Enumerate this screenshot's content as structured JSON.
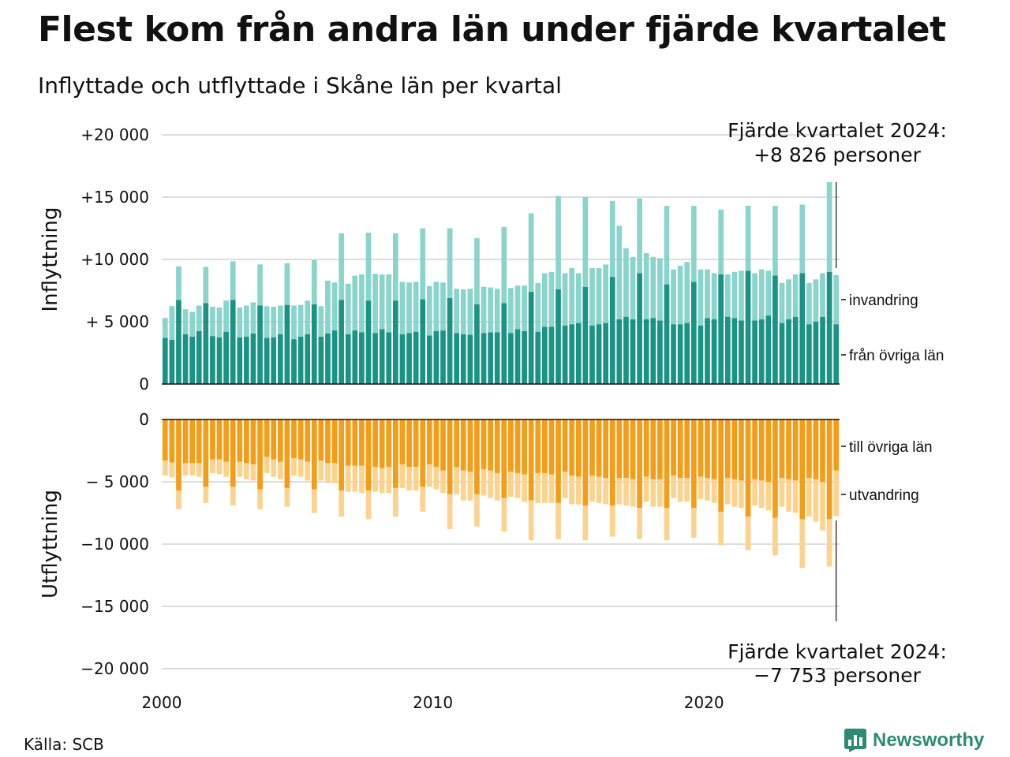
{
  "title": "Flest kom från andra län under fjärde kvartalet",
  "subtitle": "Inflyttade och utflyttade i Skåne län per kvartal",
  "source": "Källa: SCB",
  "brand": "Newsworthy",
  "colors": {
    "in_domestic": "#1a9384",
    "in_immigration": "#8ad4cc",
    "out_domestic": "#f59d17",
    "out_emigration": "#fbd38f",
    "grid": "#dddddd"
  },
  "chart_data": [
    {
      "type": "bar",
      "stacked": true,
      "ylabel": "Inflyttning",
      "ylim": [
        0,
        20000
      ],
      "ytick_values": [
        0,
        5000,
        10000,
        15000,
        20000
      ],
      "ytick_labels": [
        "0",
        "+ 5 000",
        "+10 000",
        "+15 000",
        "+20 000"
      ],
      "xlim": [
        2000,
        2025
      ],
      "xtick_values": [
        2000,
        2010,
        2020
      ],
      "xtick_labels": [
        "2000",
        "2010",
        "2020"
      ],
      "grid": true,
      "legend": "right",
      "series": [
        {
          "name": "från övriga län",
          "values": [
            3700,
            3550,
            6750,
            4000,
            3800,
            4250,
            6500,
            3850,
            3750,
            4200,
            6750,
            3750,
            3800,
            4050,
            6300,
            3700,
            3750,
            4000,
            6350,
            3600,
            3800,
            4000,
            6400,
            3800,
            4050,
            4300,
            6750,
            4000,
            4300,
            4150,
            6700,
            4100,
            4400,
            4150,
            6700,
            4000,
            4100,
            4200,
            6800,
            3900,
            4250,
            4300,
            6900,
            4100,
            4000,
            3950,
            6400,
            4100,
            4150,
            4150,
            6500,
            4100,
            4400,
            4250,
            7400,
            4200,
            4600,
            4600,
            7600,
            4700,
            4800,
            4900,
            7800,
            4700,
            4800,
            4900,
            8600,
            5200,
            5400,
            5200,
            8900,
            5200,
            5300,
            5100,
            8000,
            4800,
            4800,
            4900,
            8200,
            4700,
            5300,
            5200,
            8800,
            5400,
            5300,
            5100,
            9100,
            5100,
            5200,
            5500,
            8700,
            4900,
            5200,
            5400,
            8900,
            4800,
            5000,
            5400,
            9000,
            4800
          ]
        },
        {
          "name": "invandring",
          "values": [
            1600,
            2700,
            2700,
            2000,
            2000,
            2050,
            2900,
            2350,
            2400,
            2500,
            3100,
            2400,
            2500,
            2500,
            3300,
            2550,
            2450,
            2300,
            3350,
            2700,
            2550,
            2700,
            3550,
            2450,
            4250,
            3850,
            5350,
            4050,
            4400,
            4650,
            5450,
            4750,
            4400,
            4650,
            5400,
            4200,
            4050,
            4000,
            5700,
            3950,
            3950,
            3850,
            5600,
            3550,
            3600,
            3700,
            5300,
            3700,
            3600,
            3500,
            6100,
            3600,
            3500,
            3650,
            6300,
            3900,
            4300,
            4400,
            7500,
            4200,
            4500,
            4000,
            7200,
            4600,
            4500,
            4700,
            6100,
            7500,
            5500,
            5000,
            6000,
            5300,
            4900,
            5000,
            6300,
            4400,
            4700,
            4900,
            6100,
            4500,
            3900,
            3700,
            5200,
            3400,
            3700,
            4000,
            5200,
            3800,
            4000,
            3600,
            5600,
            3200,
            3200,
            3400,
            5500,
            3300,
            3400,
            3500,
            7200,
            3950
          ]
        }
      ]
    },
    {
      "type": "bar",
      "stacked": true,
      "ylabel": "Utflyttning",
      "ylim": [
        -20000,
        0
      ],
      "ytick_values": [
        0,
        -5000,
        -10000,
        -15000,
        -20000
      ],
      "ytick_labels": [
        "0",
        "− 5 000",
        "−10 000",
        "−15 000",
        "−20 000"
      ],
      "xlim": [
        2000,
        2025
      ],
      "xtick_values": [
        2000,
        2010,
        2020
      ],
      "xtick_labels": [
        "2000",
        "2010",
        "2020"
      ],
      "grid": true,
      "legend": "right",
      "series": [
        {
          "name": "till övriga län",
          "values": [
            -3300,
            -3450,
            -5700,
            -3500,
            -3500,
            -3500,
            -5400,
            -3200,
            -3200,
            -3400,
            -5400,
            -3400,
            -3500,
            -3600,
            -5600,
            -3000,
            -3200,
            -3400,
            -5500,
            -3100,
            -3200,
            -3400,
            -5600,
            -3300,
            -3500,
            -3500,
            -5700,
            -3700,
            -3700,
            -3700,
            -5700,
            -3800,
            -3900,
            -3800,
            -5500,
            -3600,
            -3800,
            -3800,
            -5400,
            -3600,
            -3800,
            -4100,
            -6000,
            -3800,
            -4100,
            -4200,
            -6000,
            -4000,
            -4100,
            -4300,
            -6300,
            -4200,
            -4300,
            -4400,
            -6500,
            -4300,
            -4300,
            -4400,
            -6700,
            -4200,
            -4500,
            -4600,
            -6900,
            -4500,
            -4600,
            -4700,
            -6900,
            -4700,
            -4700,
            -4800,
            -7100,
            -4600,
            -4800,
            -4800,
            -7100,
            -4500,
            -4700,
            -4700,
            -7100,
            -4600,
            -4700,
            -4800,
            -7400,
            -4700,
            -4800,
            -4900,
            -7800,
            -4800,
            -4900,
            -5000,
            -7900,
            -4700,
            -4800,
            -4900,
            -8000,
            -4700,
            -4800,
            -5000,
            -8000,
            -4100
          ]
        },
        {
          "name": "utvandring",
          "values": [
            -1200,
            -1200,
            -1500,
            -1000,
            -1000,
            -1100,
            -1300,
            -1100,
            -1200,
            -1200,
            -1500,
            -1200,
            -1300,
            -1300,
            -1600,
            -1300,
            -1400,
            -1400,
            -1500,
            -1400,
            -1400,
            -1500,
            -1900,
            -1600,
            -1600,
            -1600,
            -2100,
            -2100,
            -2100,
            -2200,
            -2300,
            -2000,
            -2000,
            -2100,
            -2300,
            -1900,
            -1900,
            -1900,
            -2000,
            -1800,
            -1800,
            -1800,
            -2800,
            -2200,
            -2400,
            -2300,
            -2600,
            -2100,
            -2200,
            -2200,
            -2700,
            -2000,
            -2000,
            -2200,
            -3200,
            -2400,
            -2400,
            -2300,
            -2900,
            -2100,
            -2300,
            -2200,
            -2800,
            -2100,
            -2100,
            -2100,
            -2500,
            -2100,
            -2200,
            -2200,
            -2500,
            -2000,
            -2200,
            -2200,
            -2600,
            -1800,
            -1900,
            -1900,
            -2400,
            -1800,
            -1800,
            -1900,
            -2700,
            -2100,
            -2200,
            -2200,
            -2700,
            -2100,
            -2200,
            -2300,
            -3000,
            -2300,
            -2600,
            -2600,
            -3900,
            -3100,
            -3400,
            -3900,
            -3800,
            -3650
          ]
        }
      ]
    }
  ],
  "annotations": {
    "top_line1": "Fjärde kvartalet 2024:",
    "top_line2": "+8 826 personer",
    "bottom_line1": "Fjärde kvartalet 2024:",
    "bottom_line2": "−7 753 personer"
  }
}
